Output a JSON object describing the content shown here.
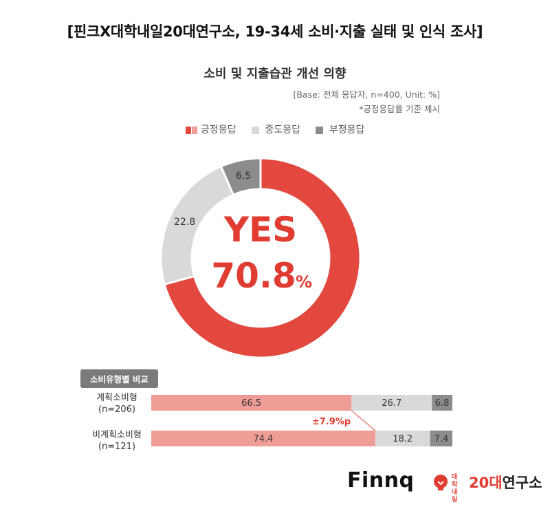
{
  "header": {
    "title": "[핀크X대학내일20대연구소, 19-34세 소비·지출 실태 및 인식 조사]"
  },
  "chart": {
    "title": "소비 및 지출습관 개선 의향",
    "base_note": "[Base: 전체 응답자, n=400, Unit: %]",
    "star_note": "*긍정응답률 기준 제시",
    "center_yes": "YES",
    "center_value": "70.8",
    "center_unit": "%"
  },
  "legend": [
    {
      "label": "긍정응답",
      "colors": [
        "#e2483d",
        "#ee9d97"
      ]
    },
    {
      "label": "중도응답",
      "colors": [
        "#d9d9d9"
      ]
    },
    {
      "label": "부정응답",
      "colors": [
        "#8c8c8c"
      ]
    }
  ],
  "colors": {
    "positive": "#e2483d",
    "positive_light": "#ee9d97",
    "neutral": "#d9d9d9",
    "negative": "#8c8c8c",
    "center_text": "#e03c31"
  },
  "compare": {
    "badge": "소비유형별 비교",
    "diff_label": "±7.9%p",
    "rows": [
      {
        "label": "계획소비형",
        "sub": "(n=206)",
        "values": [
          66.5,
          26.7,
          6.8
        ],
        "value_labels": [
          "66.5",
          "26.7",
          "6.8"
        ]
      },
      {
        "label": "비계획소비형",
        "sub": "(n=121)",
        "values": [
          74.4,
          18.2,
          7.4
        ],
        "value_labels": [
          "74.4",
          "18.2",
          "7.4"
        ]
      }
    ]
  },
  "chart_data": [
    {
      "type": "pie",
      "title": "소비 및 지출습관 개선 의향",
      "categories": [
        "긍정응답",
        "중도응답",
        "부정응답"
      ],
      "values": [
        70.8,
        22.8,
        6.5
      ],
      "value_labels": [
        "70.8",
        "22.8",
        "6.5"
      ],
      "legend_position": "top"
    },
    {
      "type": "bar",
      "orientation": "horizontal-stacked",
      "title": "소비유형별 비교",
      "categories": [
        "계획소비형 (n=206)",
        "비계획소비형 (n=121)"
      ],
      "series": [
        {
          "name": "긍정응답",
          "values": [
            66.5,
            74.4
          ]
        },
        {
          "name": "중도응답",
          "values": [
            26.7,
            18.2
          ]
        },
        {
          "name": "부정응답",
          "values": [
            6.8,
            7.4
          ]
        }
      ],
      "xlim": [
        0,
        100
      ]
    }
  ],
  "logos": {
    "finnq": "Finnq",
    "univ_small_1": "대학",
    "univ_small_2": "내일",
    "univ_num": "20대",
    "univ_rest": "연구소"
  }
}
